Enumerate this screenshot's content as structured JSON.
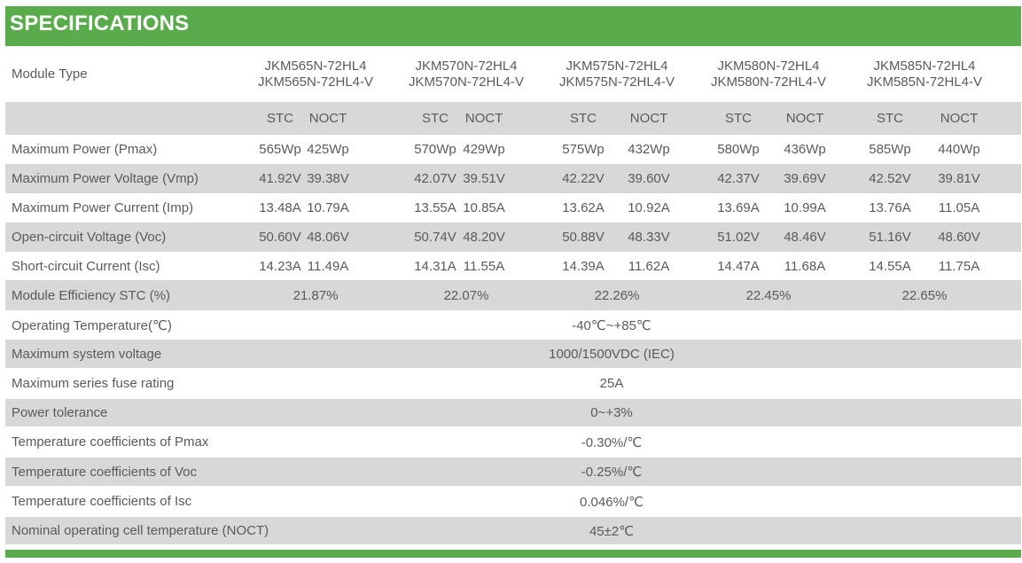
{
  "header": {
    "title": "SPECIFICATIONS"
  },
  "module_type": {
    "label": "Module Type",
    "models": [
      {
        "line1": "JKM565N-72HL4",
        "line2": "JKM565N-72HL4-V"
      },
      {
        "line1": "JKM570N-72HL4",
        "line2": "JKM570N-72HL4-V"
      },
      {
        "line1": "JKM575N-72HL4",
        "line2": "JKM575N-72HL4-V"
      },
      {
        "line1": "JKM580N-72HL4",
        "line2": "JKM580N-72HL4-V"
      },
      {
        "line1": "JKM585N-72HL4",
        "line2": "JKM585N-72HL4-V"
      }
    ]
  },
  "conditions": [
    "STC",
    "NOCT",
    "STC",
    "NOCT",
    "STC",
    "NOCT",
    "STC",
    "NOCT",
    "STC",
    "NOCT"
  ],
  "paired_rows": [
    {
      "label": "Maximum Power (Pmax)",
      "values": [
        "565Wp",
        "425Wp",
        "570Wp",
        "429Wp",
        "575Wp",
        "432Wp",
        "580Wp",
        "436Wp",
        "585Wp",
        "440Wp"
      ]
    },
    {
      "label": "Maximum Power Voltage (Vmp)",
      "values": [
        "41.92V",
        "39.38V",
        "42.07V",
        "39.51V",
        "42.22V",
        "39.60V",
        "42.37V",
        "39.69V",
        "42.52V",
        "39.81V"
      ]
    },
    {
      "label": "Maximum Power Current (Imp)",
      "values": [
        "13.48A",
        "10.79A",
        "13.55A",
        "10.85A",
        "13.62A",
        "10.92A",
        "13.69A",
        "10.99A",
        "13.76A",
        "11.05A"
      ]
    },
    {
      "label": "Open-circuit Voltage (Voc)",
      "values": [
        "50.60V",
        "48.06V",
        "50.74V",
        "48.20V",
        "50.88V",
        "48.33V",
        "51.02V",
        "48.46V",
        "51.16V",
        "48.60V"
      ]
    },
    {
      "label": "Short-circuit Current (Isc)",
      "values": [
        "14.23A",
        "11.49A",
        "14.31A",
        "11.55A",
        "14.39A",
        "11.62A",
        "14.47A",
        "11.68A",
        "14.55A",
        "11.75A"
      ]
    }
  ],
  "efficiency": {
    "label": "Module Efficiency STC (%)",
    "values": [
      "21.87%",
      "22.07%",
      "22.26%",
      "22.45%",
      "22.65%"
    ]
  },
  "shared_rows": [
    {
      "label": "Operating Temperature(℃)",
      "value": "-40℃~+85℃"
    },
    {
      "label": "Maximum system voltage",
      "value": "1000/1500VDC (IEC)"
    },
    {
      "label": "Maximum series fuse rating",
      "value": "25A"
    },
    {
      "label": "Power tolerance",
      "value": "0~+3%"
    },
    {
      "label": "Temperature coefficients of Pmax",
      "value": "-0.30%/℃"
    },
    {
      "label": "Temperature coefficients of Voc",
      "value": "-0.25%/℃"
    },
    {
      "label": "Temperature coefficients of Isc",
      "value": "0.046%/℃"
    },
    {
      "label": "Nominal operating cell temperature  (NOCT)",
      "value": "45±2℃"
    }
  ],
  "colors": {
    "accent": "#5aab4c",
    "stripe": "#d8d8d8",
    "text": "#5a5a5a"
  }
}
